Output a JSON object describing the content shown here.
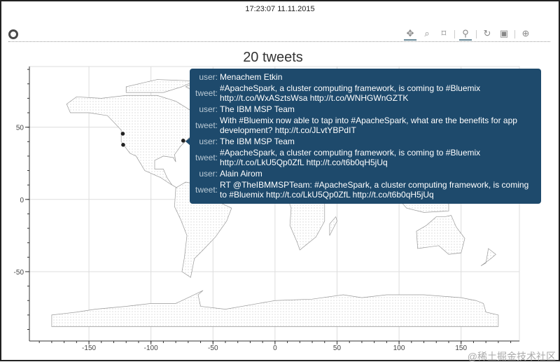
{
  "timestamp": "17:23:07 11.11.2015",
  "toolbar": {
    "tools": [
      "pan",
      "box-zoom",
      "resize",
      "wheel-zoom",
      "reset",
      "save",
      "crosshair"
    ]
  },
  "chart_data": {
    "type": "scatter",
    "title": "20 tweets",
    "xlim": [
      -198,
      197
    ],
    "ylim": [
      -98,
      92
    ],
    "xticks": [
      -150,
      -100,
      -50,
      0,
      50,
      100,
      150
    ],
    "yticks": [
      50,
      0,
      -50
    ],
    "grid": true,
    "background": "world map",
    "points": [
      {
        "lon": -122.7,
        "lat": 45.5
      },
      {
        "lon": -122.4,
        "lat": 37.8
      },
      {
        "lon": -74.0,
        "lat": 40.7
      }
    ],
    "point_color": "#222222"
  },
  "tooltip": {
    "bg_color": "#1e4a6c",
    "items": [
      {
        "user_label": "user:",
        "user": "Menachem Etkin",
        "tweet_label": "tweet:",
        "tweet": "#ApacheSpark, a cluster computing framework, is coming to #Bluemix http://t.co/WxASztsWsa http://t.co/WNHGWnGZTK"
      },
      {
        "user_label": "user:",
        "user": "The IBM MSP Team",
        "tweet_label": "tweet:",
        "tweet": "With #Bluemix now able to tap into #ApacheSpark, what are the benefits for app development? http://t.co/JLvtYBPdIT"
      },
      {
        "user_label": "user:",
        "user": "The IBM MSP Team",
        "tweet_label": "tweet:",
        "tweet": "#ApacheSpark, a cluster computing framework, is coming to #Bluemix http://t.co/LkU5Qp0ZfL http://t.co/t6b0qH5jUq"
      },
      {
        "user_label": "user:",
        "user": "Alain Airom",
        "tweet_label": "tweet:",
        "tweet": "RT @TheIBMMSPTeam: #ApacheSpark, a cluster computing framework, is coming to #Bluemix http://t.co/LkU5Qp0ZfL http://t.co/t6b0qH5jUq"
      }
    ]
  },
  "watermark": "@稀土掘金技术社区"
}
